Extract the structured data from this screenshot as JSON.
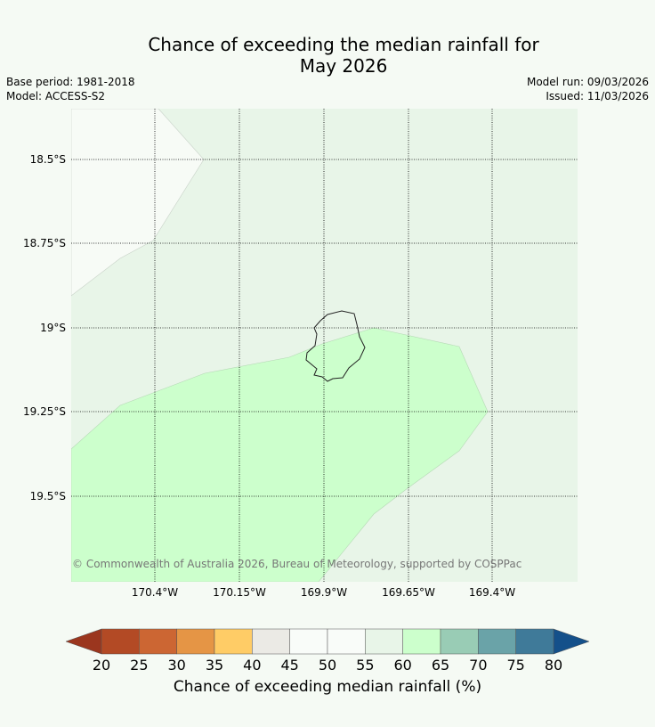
{
  "title_line1": "Chance of exceeding the median rainfall for",
  "title_line2": "May 2026",
  "meta": {
    "base_period": "Base period: 1981-2018",
    "model": "Model: ACCESS-S2",
    "model_run": "Model run: 09/03/2026",
    "issued": "Issued: 11/03/2026"
  },
  "map": {
    "latitude_labels": [
      "18.5°S",
      "18.75°S",
      "19°S",
      "19.25°S",
      "19.5°S"
    ],
    "longitude_labels": [
      "170.4°W",
      "170.15°W",
      "169.9°W",
      "169.65°W",
      "169.4°W"
    ],
    "copyright": "© Commonwealth of Australia 2026, Bureau of Meteorology, supported by COSPPac",
    "colors": {
      "band_50_55": "#f7fbf6",
      "band_55_60": "#e8f5e8",
      "band_60_65": "#ccffcc"
    }
  },
  "colorbar": {
    "label": "Chance of exceeding median rainfall (%)",
    "ticks": [
      "20",
      "25",
      "30",
      "35",
      "40",
      "45",
      "50",
      "55",
      "60",
      "65",
      "70",
      "75",
      "80"
    ],
    "colors": [
      "#b34a25",
      "#cc6633",
      "#e59545",
      "#ffcc66",
      "#ebeae5",
      "#f9fcf9",
      "#f9fcf9",
      "#e8f5e8",
      "#ccffcc",
      "#99ccb5",
      "#6aa3a8",
      "#3f7a99"
    ],
    "under_color": "#9b361e",
    "over_color": "#14508a"
  }
}
